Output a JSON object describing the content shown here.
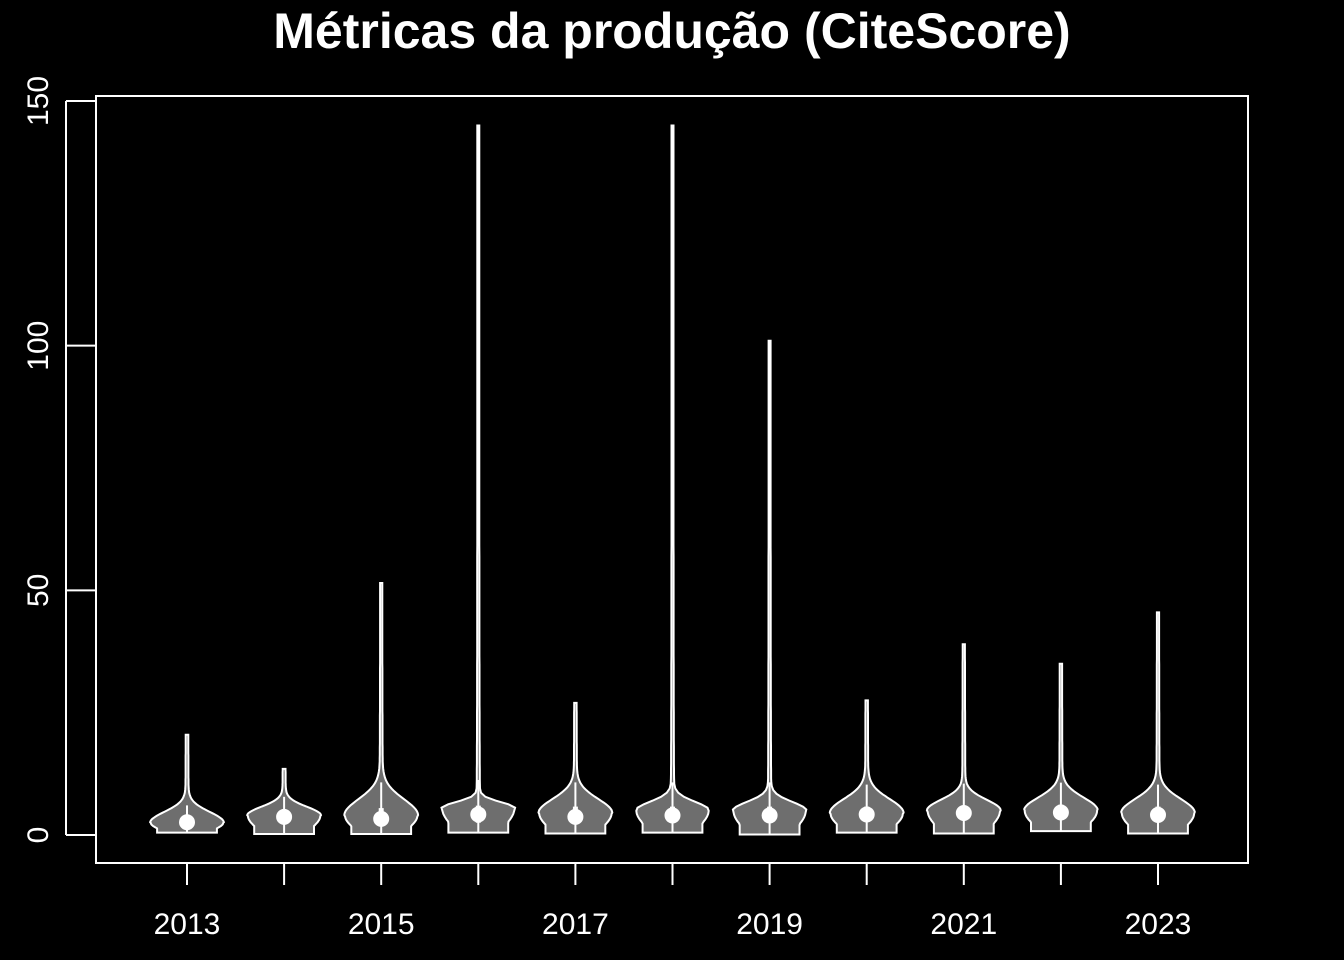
{
  "chart_data": {
    "type": "violin",
    "title": "Métricas da produção (CiteScore)",
    "xlabel": "",
    "ylabel": "",
    "ylim": [
      -11,
      150
    ],
    "y_ticks": [
      0,
      50,
      100,
      150
    ],
    "x_tick_labels": [
      "2013",
      "",
      "2015",
      "",
      "2017",
      "",
      "2019",
      "",
      "2021",
      "",
      "2023"
    ],
    "grid": false,
    "colors": {
      "background": "#000000",
      "violin_fill": "#6e6e6e",
      "stroke": "#ffffff"
    },
    "series": [
      {
        "category": "2013",
        "min": 0.5,
        "q1": 1.8,
        "median": 2.6,
        "q3": 3.5,
        "max": 20.5,
        "peak_width": 0.8,
        "peak_at": 2.5
      },
      {
        "category": "2014",
        "min": 0.2,
        "q1": 2.8,
        "median": 3.7,
        "q3": 4.8,
        "max": 13.5,
        "peak_width": 0.8,
        "peak_at": 4.0
      },
      {
        "category": "2015",
        "min": 0.2,
        "q1": 2.0,
        "median": 3.3,
        "q3": 5.5,
        "max": 51.5,
        "peak_width": 0.8,
        "peak_at": 4.0
      },
      {
        "category": "2016",
        "min": 0.5,
        "q1": 2.5,
        "median": 4.2,
        "q3": 6.0,
        "max": 145.0,
        "peak_width": 0.8,
        "peak_at": 5.5
      },
      {
        "category": "2017",
        "min": 0.3,
        "q1": 2.5,
        "median": 3.7,
        "q3": 5.8,
        "max": 27.0,
        "peak_width": 0.8,
        "peak_at": 4.5
      },
      {
        "category": "2018",
        "min": 0.5,
        "q1": 2.5,
        "median": 4.0,
        "q3": 5.8,
        "max": 145.0,
        "peak_width": 0.8,
        "peak_at": 5.0
      },
      {
        "category": "2019",
        "min": 0.1,
        "q1": 2.5,
        "median": 4.0,
        "q3": 5.8,
        "max": 101.0,
        "peak_width": 0.8,
        "peak_at": 5.0
      },
      {
        "category": "2020",
        "min": 0.5,
        "q1": 2.8,
        "median": 4.2,
        "q3": 5.8,
        "max": 27.5,
        "peak_width": 0.8,
        "peak_at": 4.5
      },
      {
        "category": "2021",
        "min": 0.3,
        "q1": 3.0,
        "median": 4.5,
        "q3": 6.0,
        "max": 39.0,
        "peak_width": 0.8,
        "peak_at": 5.0
      },
      {
        "category": "2022",
        "min": 0.8,
        "q1": 3.2,
        "median": 4.6,
        "q3": 6.2,
        "max": 35.0,
        "peak_width": 0.8,
        "peak_at": 5.0
      },
      {
        "category": "2023",
        "min": 0.3,
        "q1": 2.8,
        "median": 4.1,
        "q3": 5.8,
        "max": 45.5,
        "peak_width": 0.8,
        "peak_at": 4.5
      }
    ]
  }
}
